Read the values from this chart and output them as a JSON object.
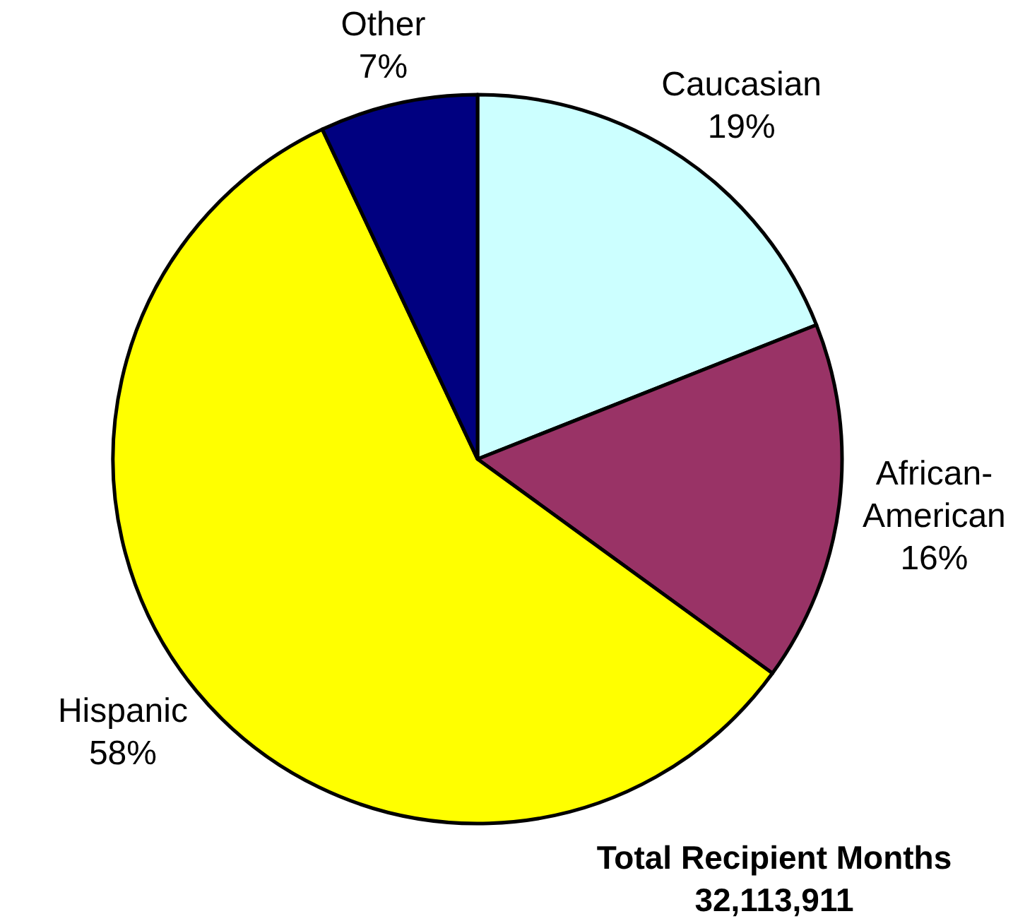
{
  "chart_data": {
    "type": "pie",
    "categories": [
      "Caucasian",
      "African-American",
      "Hispanic",
      "Other"
    ],
    "values": [
      19,
      16,
      58,
      7
    ],
    "colors": [
      "#ccffff",
      "#993366",
      "#ffff00",
      "#000080"
    ],
    "value_labels": [
      "19%",
      "16%",
      "58%",
      "7%"
    ],
    "annotations": [
      "Total Recipient Months",
      "32,113,911"
    ]
  }
}
